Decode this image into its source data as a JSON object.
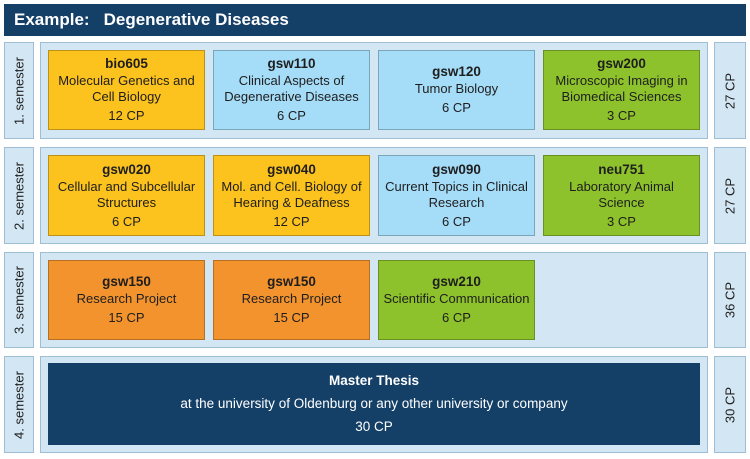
{
  "header": {
    "prefix": "Example:",
    "title": "Degenerative Diseases"
  },
  "semesters": [
    {
      "label": "1. semester",
      "total": "27 CP",
      "modules": [
        {
          "code": "bio605",
          "title": "Molecular Genetics and Cell Biology",
          "cp": "12 CP",
          "color": "#fcc21d"
        },
        {
          "code": "gsw110",
          "title": "Clinical Aspects of Degenerative Diseases",
          "cp": "6 CP",
          "color": "#a5dcf7"
        },
        {
          "code": "gsw120",
          "title": "Tumor Biology",
          "cp": "6 CP",
          "color": "#a5dcf7"
        },
        {
          "code": "gsw200",
          "title": "Microscopic Imaging in Biomedical Sciences",
          "cp": "3 CP",
          "color": "#8dc22c"
        }
      ]
    },
    {
      "label": "2. semester",
      "total": "27 CP",
      "modules": [
        {
          "code": "gsw020",
          "title": "Cellular and Subcellular Structures",
          "cp": "6 CP",
          "color": "#fcc21d"
        },
        {
          "code": "gsw040",
          "title": "Mol. and Cell. Biology of Hearing & Deafness",
          "cp": "12 CP",
          "color": "#fcc21d"
        },
        {
          "code": "gsw090",
          "title": "Current Topics in Clinical Research",
          "cp": "6 CP",
          "color": "#a5dcf7"
        },
        {
          "code": "neu751",
          "title": "Laboratory Animal Science",
          "cp": "3 CP",
          "color": "#8dc22c"
        }
      ]
    },
    {
      "label": "3. semester",
      "total": "36 CP",
      "modules": [
        {
          "code": "gsw150",
          "title": "Research Project",
          "cp": "15 CP",
          "color": "#f2932e"
        },
        {
          "code": "gsw150",
          "title": "Research Project",
          "cp": "15 CP",
          "color": "#f2932e"
        },
        {
          "code": "gsw210",
          "title": "Scientific Communication",
          "cp": "6 CP",
          "color": "#8dc22c"
        }
      ]
    },
    {
      "label": "4. semester",
      "total": "30 CP",
      "thesis": {
        "title": "Master Thesis",
        "subtitle": "at the university of Oldenburg or any other university or company",
        "cp": "30 CP"
      }
    }
  ],
  "colors": {
    "header": "#143f67",
    "row_bg": "#d3e6f3",
    "yellow": "#fcc21d",
    "blue": "#a5dcf7",
    "green": "#8dc22c",
    "orange": "#f2932e",
    "thesis": "#143f67"
  }
}
